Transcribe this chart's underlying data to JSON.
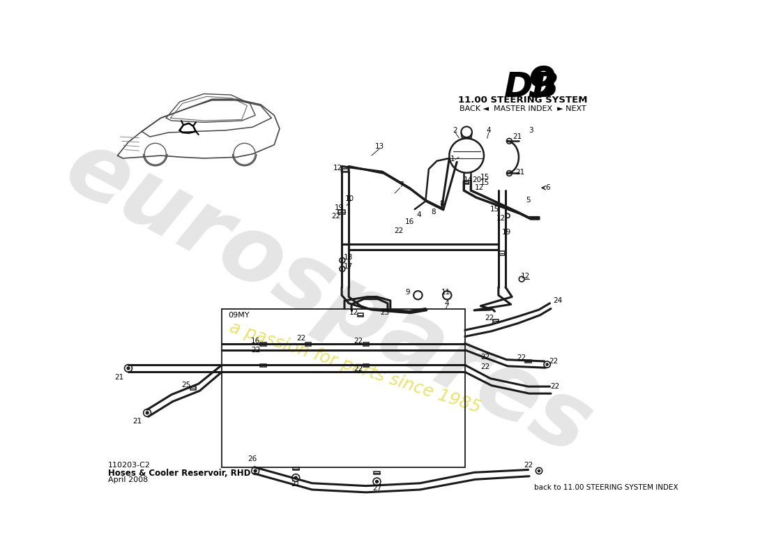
{
  "bg_color": "#ffffff",
  "title_db9_italic": "DB9",
  "title_system": "11.00 STEERING SYSTEM",
  "nav_text": "BACK ◄  MASTER INDEX  ► NEXT",
  "bottom_left_line1": "110203-C2",
  "bottom_left_line2": "Hoses & Cooler Reservoir, RHD",
  "bottom_left_line3": "April 2008",
  "bottom_right": "back to 11.00 STEERING SYSTEM INDEX",
  "section_label": "09MY",
  "lc": "#1a1a1a",
  "wm_gray": "#d0d0d0",
  "wm_yellow": "#e8dc50"
}
